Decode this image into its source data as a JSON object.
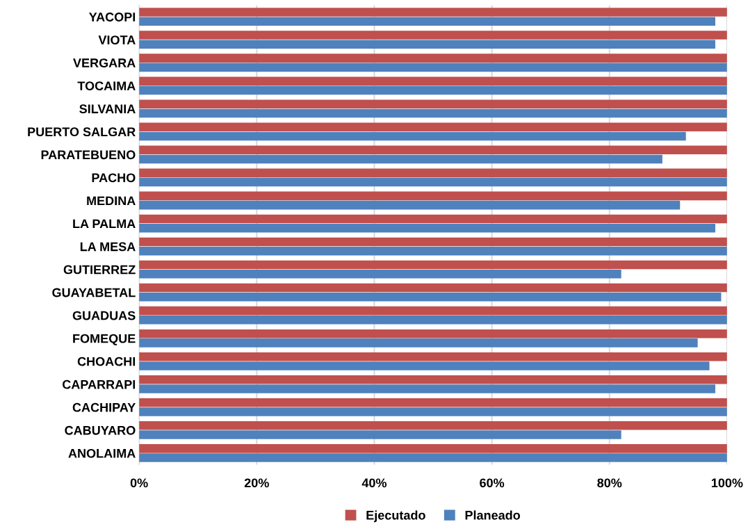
{
  "chart_data": {
    "type": "bar",
    "orientation": "horizontal",
    "categories": [
      "YACOPI",
      "VIOTA",
      "VERGARA",
      "TOCAIMA",
      "SILVANIA",
      "PUERTO SALGAR",
      "PARATEBUENO",
      "PACHO",
      "MEDINA",
      "LA PALMA",
      "LA MESA",
      "GUTIERREZ",
      "GUAYABETAL",
      "GUADUAS",
      "FOMEQUE",
      "CHOACHI",
      "CAPARRAPI",
      "CACHIPAY",
      "CABUYARO",
      "ANOLAIMA"
    ],
    "series": [
      {
        "name": "Ejecutado",
        "color": "#c0504d",
        "values": [
          100,
          100,
          100,
          100,
          100,
          100,
          100,
          100,
          100,
          100,
          100,
          100,
          100,
          100,
          100,
          100,
          100,
          100,
          100,
          100
        ]
      },
      {
        "name": "Planeado",
        "color": "#4f81bd",
        "values": [
          98,
          98,
          100,
          100,
          100,
          93,
          89,
          100,
          92,
          98,
          100,
          82,
          99,
          100,
          95,
          97,
          98,
          100,
          82,
          100
        ]
      }
    ],
    "xlim": [
      0,
      100
    ],
    "xticks": [
      {
        "value": 0,
        "label": "0%"
      },
      {
        "value": 20,
        "label": "20%"
      },
      {
        "value": 40,
        "label": "40%"
      },
      {
        "value": 60,
        "label": "60%"
      },
      {
        "value": 80,
        "label": "80%"
      },
      {
        "value": 100,
        "label": "100%"
      }
    ],
    "grid": "x",
    "legend": "bottom"
  }
}
